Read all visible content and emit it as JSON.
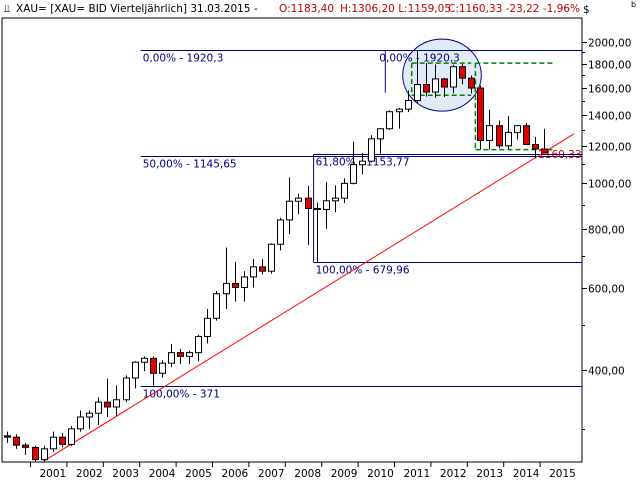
{
  "header": {
    "symbol_icon": "candlestick-icon",
    "title": "XAU= [XAU= BID Vierteljährlich] 31.03.2015 -",
    "open": "O:1183,40",
    "high_low": "H:1306,20 L:1159,05",
    "close_change": "C:1160,33 -23,22 -1,96%",
    "currency": "$",
    "corner_mark": "b"
  },
  "colors": {
    "up_body": "#ffffff",
    "down_body": "#e00000",
    "wick": "#000000",
    "fib_line": "#000080",
    "fib_text": "#000080",
    "trendline": "#ff0000",
    "channel": "#008000",
    "ellipse_fill": "#c8d8f0",
    "ellipse_stroke": "#000080",
    "last_price_label": "#c00000"
  },
  "chart_data": {
    "type": "candlestick",
    "period": "quarterly",
    "y_scale": "log",
    "ylim": [
      255,
      2250
    ],
    "y_ticks": [
      400,
      600,
      800,
      1000,
      1200,
      1400,
      1600,
      1800,
      2000
    ],
    "y_tick_labels": [
      "400,00",
      "600,00",
      "800,00",
      "1000,00",
      "1200,00",
      "1400,00",
      "1600,00",
      "1800,00",
      "2000,00"
    ],
    "x_labels": [
      "2001",
      "2002",
      "2003",
      "2004",
      "2005",
      "2006",
      "2007",
      "2008",
      "2009",
      "2010",
      "2011",
      "2012",
      "2013",
      "2014",
      "2015"
    ],
    "candles": [
      {
        "q": "2000Q2",
        "o": 290,
        "h": 296,
        "l": 280,
        "c": 288
      },
      {
        "q": "2000Q3",
        "o": 288,
        "h": 292,
        "l": 272,
        "c": 277
      },
      {
        "q": "2000Q4",
        "o": 277,
        "h": 280,
        "l": 264,
        "c": 274
      },
      {
        "q": "2001Q1",
        "o": 274,
        "h": 276,
        "l": 256,
        "c": 258
      },
      {
        "q": "2001Q2",
        "o": 258,
        "h": 276,
        "l": 256,
        "c": 272
      },
      {
        "q": "2001Q3",
        "o": 272,
        "h": 296,
        "l": 268,
        "c": 288
      },
      {
        "q": "2001Q4",
        "o": 288,
        "h": 294,
        "l": 274,
        "c": 278
      },
      {
        "q": "2002Q1",
        "o": 278,
        "h": 304,
        "l": 276,
        "c": 300
      },
      {
        "q": "2002Q2",
        "o": 300,
        "h": 328,
        "l": 296,
        "c": 318
      },
      {
        "q": "2002Q3",
        "o": 318,
        "h": 328,
        "l": 300,
        "c": 324
      },
      {
        "q": "2002Q4",
        "o": 324,
        "h": 350,
        "l": 306,
        "c": 342
      },
      {
        "q": "2003Q1",
        "o": 342,
        "h": 384,
        "l": 318,
        "c": 334
      },
      {
        "q": "2003Q2",
        "o": 334,
        "h": 371,
        "l": 320,
        "c": 346
      },
      {
        "q": "2003Q3",
        "o": 346,
        "h": 390,
        "l": 342,
        "c": 385
      },
      {
        "q": "2003Q4",
        "o": 385,
        "h": 418,
        "l": 366,
        "c": 416
      },
      {
        "q": "2004Q1",
        "o": 416,
        "h": 428,
        "l": 398,
        "c": 424
      },
      {
        "q": "2004Q2",
        "o": 424,
        "h": 428,
        "l": 371,
        "c": 394
      },
      {
        "q": "2004Q3",
        "o": 394,
        "h": 420,
        "l": 386,
        "c": 414
      },
      {
        "q": "2004Q4",
        "o": 414,
        "h": 455,
        "l": 406,
        "c": 436
      },
      {
        "q": "2005Q1",
        "o": 436,
        "h": 444,
        "l": 412,
        "c": 428
      },
      {
        "q": "2005Q2",
        "o": 428,
        "h": 440,
        "l": 412,
        "c": 436
      },
      {
        "q": "2005Q3",
        "o": 436,
        "h": 476,
        "l": 418,
        "c": 472
      },
      {
        "q": "2005Q4",
        "o": 472,
        "h": 540,
        "l": 456,
        "c": 516
      },
      {
        "q": "2006Q1",
        "o": 516,
        "h": 590,
        "l": 510,
        "c": 582
      },
      {
        "q": "2006Q2",
        "o": 582,
        "h": 730,
        "l": 540,
        "c": 612
      },
      {
        "q": "2006Q3",
        "o": 612,
        "h": 680,
        "l": 560,
        "c": 600
      },
      {
        "q": "2006Q4",
        "o": 600,
        "h": 650,
        "l": 560,
        "c": 632
      },
      {
        "q": "2007Q1",
        "o": 632,
        "h": 690,
        "l": 600,
        "c": 664
      },
      {
        "q": "2007Q2",
        "o": 664,
        "h": 690,
        "l": 640,
        "c": 650
      },
      {
        "q": "2007Q3",
        "o": 650,
        "h": 745,
        "l": 642,
        "c": 742
      },
      {
        "q": "2007Q4",
        "o": 742,
        "h": 845,
        "l": 720,
        "c": 836
      },
      {
        "q": "2008Q1",
        "o": 836,
        "h": 1030,
        "l": 780,
        "c": 916
      },
      {
        "q": "2008Q2",
        "o": 916,
        "h": 950,
        "l": 860,
        "c": 930
      },
      {
        "q": "2008Q3",
        "o": 930,
        "h": 988,
        "l": 740,
        "c": 884
      },
      {
        "q": "2008Q4",
        "o": 884,
        "h": 910,
        "l": 680,
        "c": 880
      },
      {
        "q": "2009Q1",
        "o": 880,
        "h": 1006,
        "l": 800,
        "c": 918
      },
      {
        "q": "2009Q2",
        "o": 918,
        "h": 990,
        "l": 868,
        "c": 930
      },
      {
        "q": "2009Q3",
        "o": 930,
        "h": 1025,
        "l": 908,
        "c": 1000
      },
      {
        "q": "2009Q4",
        "o": 1000,
        "h": 1226,
        "l": 995,
        "c": 1096
      },
      {
        "q": "2010Q1",
        "o": 1096,
        "h": 1160,
        "l": 1045,
        "c": 1115
      },
      {
        "q": "2010Q2",
        "o": 1115,
        "h": 1266,
        "l": 1108,
        "c": 1244
      },
      {
        "q": "2010Q3",
        "o": 1244,
        "h": 1310,
        "l": 1156,
        "c": 1307
      },
      {
        "q": "2010Q4",
        "o": 1307,
        "h": 1430,
        "l": 1300,
        "c": 1421
      },
      {
        "q": "2011Q1",
        "o": 1421,
        "h": 1448,
        "l": 1308,
        "c": 1439
      },
      {
        "q": "2011Q2",
        "o": 1439,
        "h": 1578,
        "l": 1418,
        "c": 1501
      },
      {
        "q": "2011Q3",
        "o": 1501,
        "h": 1920.3,
        "l": 1480,
        "c": 1624
      },
      {
        "q": "2011Q4",
        "o": 1624,
        "h": 1803,
        "l": 1530,
        "c": 1565
      },
      {
        "q": "2012Q1",
        "o": 1565,
        "h": 1792,
        "l": 1522,
        "c": 1669
      },
      {
        "q": "2012Q2",
        "o": 1669,
        "h": 1678,
        "l": 1527,
        "c": 1604
      },
      {
        "q": "2012Q3",
        "o": 1604,
        "h": 1790,
        "l": 1556,
        "c": 1772
      },
      {
        "q": "2012Q4",
        "o": 1772,
        "h": 1796,
        "l": 1625,
        "c": 1675
      },
      {
        "q": "2013Q1",
        "o": 1675,
        "h": 1697,
        "l": 1554,
        "c": 1596
      },
      {
        "q": "2013Q2",
        "o": 1596,
        "h": 1616,
        "l": 1180,
        "c": 1234
      },
      {
        "q": "2013Q3",
        "o": 1234,
        "h": 1434,
        "l": 1180,
        "c": 1327
      },
      {
        "q": "2013Q4",
        "o": 1327,
        "h": 1361,
        "l": 1187,
        "c": 1202
      },
      {
        "q": "2014Q1",
        "o": 1202,
        "h": 1392,
        "l": 1182,
        "c": 1284
      },
      {
        "q": "2014Q2",
        "o": 1284,
        "h": 1332,
        "l": 1240,
        "c": 1327
      },
      {
        "q": "2014Q3",
        "o": 1327,
        "h": 1345,
        "l": 1206,
        "c": 1210
      },
      {
        "q": "2014Q4",
        "o": 1210,
        "h": 1255,
        "l": 1131,
        "c": 1184
      },
      {
        "q": "2015Q1",
        "o": 1183.4,
        "h": 1306.2,
        "l": 1159.05,
        "c": 1160.33
      }
    ],
    "fib_levels": [
      {
        "label": "0,00% - 1920,3",
        "value": 1920.3,
        "from": "2004Q1",
        "to": "2015Q1"
      },
      {
        "label": "0,00% - 1920,3",
        "value": 1920.3,
        "from": "2010Q3",
        "to": "2015Q1"
      },
      {
        "label": "50,00% - 1145,65",
        "value": 1145.65,
        "from": "2004Q1",
        "to": "2015Q1"
      },
      {
        "label": "61,80% - 1153,77",
        "value": 1153.77,
        "from": "2008Q4",
        "to": "2015Q1"
      },
      {
        "label": "100,00% - 679,96",
        "value": 679.96,
        "from": "2008Q4",
        "to": "2015Q1"
      },
      {
        "label": "100,00% - 371",
        "value": 371,
        "from": "2004Q1",
        "to": "2015Q1"
      }
    ],
    "trendline": {
      "from": {
        "q": "2001Q2",
        "value": 256
      },
      "to": {
        "q": "2015Q1",
        "value": 1275
      }
    },
    "channel_boxes": [
      {
        "from": "2011Q3",
        "to": "2012Q4",
        "top": 1803,
        "bottom": 1540
      },
      {
        "from": "2013Q2",
        "to": "2015Q1",
        "top": 1803,
        "bottom": 1180
      }
    ],
    "highlight_ellipse": {
      "from": "2011Q3",
      "to": "2013Q1",
      "center_value": 1700
    },
    "last_price_label": "1160,33"
  }
}
